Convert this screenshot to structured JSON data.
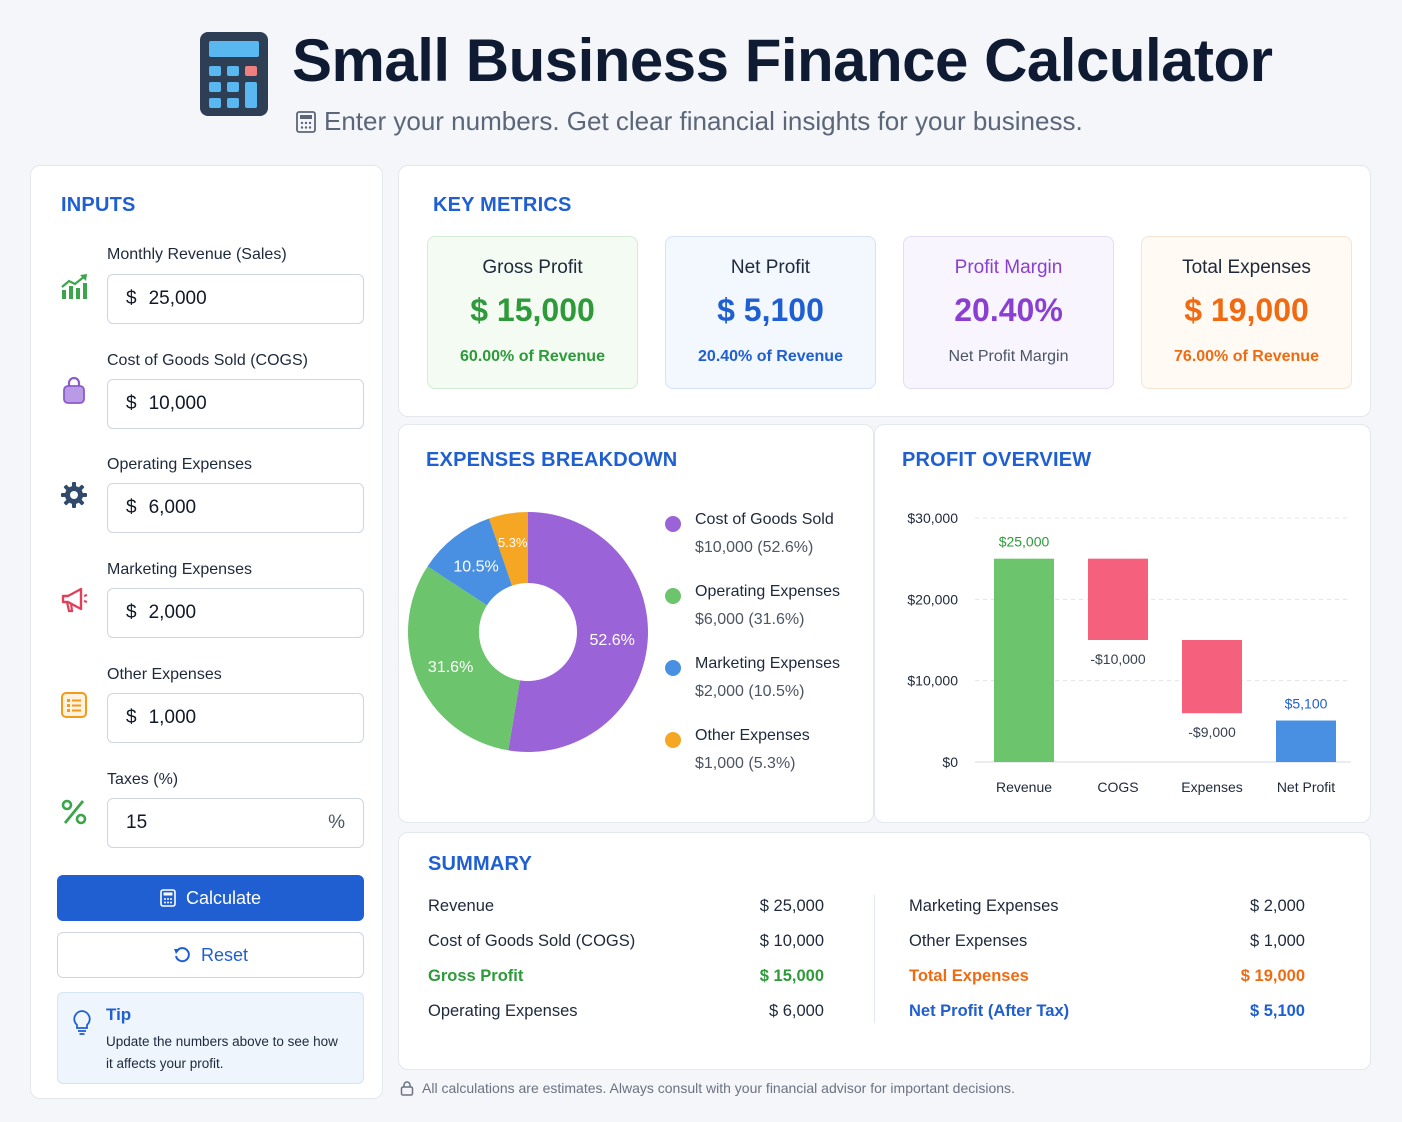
{
  "header": {
    "title": "Small Business Finance Calculator",
    "subtitle": "Enter your numbers. Get clear financial insights for your business."
  },
  "inputs": {
    "title": "INPUTS",
    "currency": "$",
    "fields": [
      {
        "label": "Monthly Revenue (Sales)",
        "value": "25,000",
        "icon": "chart-up-icon"
      },
      {
        "label": "Cost of Goods Sold (COGS)",
        "value": "10,000",
        "icon": "bag-icon"
      },
      {
        "label": "Operating Expenses",
        "value": "6,000",
        "icon": "gear-icon"
      },
      {
        "label": "Marketing Expenses",
        "value": "2,000",
        "icon": "megaphone-icon"
      },
      {
        "label": "Other Expenses",
        "value": "1,000",
        "icon": "list-icon"
      }
    ],
    "taxes": {
      "label": "Taxes (%)",
      "value": "15",
      "suffix": "%",
      "icon": "percent-icon"
    },
    "calculate_label": "Calculate",
    "reset_label": "Reset",
    "tip": {
      "title": "Tip",
      "text": "Update the numbers above to see how it affects your profit."
    }
  },
  "metrics": {
    "title": "KEY METRICS",
    "cards": [
      {
        "label": "Gross Profit",
        "value": "$ 15,000",
        "sub": "60.00% of Revenue",
        "color": "#2e9a3a",
        "bg": "#f3fbf3",
        "border": "#d4ecd5"
      },
      {
        "label": "Net Profit",
        "value": "$ 5,100",
        "sub": "20.40% of Revenue",
        "color": "#1f5fd1",
        "bg": "#f3f7fe",
        "border": "#d6e2f6"
      },
      {
        "label": "Profit Margin",
        "value": "20.40%",
        "sub": "Net Profit Margin",
        "color": "#8a3fd1",
        "bg": "#f8f5fe",
        "border": "#e4dcf5"
      },
      {
        "label": "Total Expenses",
        "value": "$ 19,000",
        "sub": "76.00% of Revenue",
        "color": "#f06a12",
        "bg": "#fffaf4",
        "border": "#f6e4d2"
      }
    ]
  },
  "expenses": {
    "title": "EXPENSES BREAKDOWN",
    "legend": [
      {
        "name": "Cost of Goods Sold",
        "value": "$10,000 (52.6%)"
      },
      {
        "name": "Operating Expenses",
        "value": "$6,000 (31.6%)"
      },
      {
        "name": "Marketing Expenses",
        "value": "$2,000 (10.5%)"
      },
      {
        "name": "Other Expenses",
        "value": "$1,000 (5.3%)"
      }
    ]
  },
  "profit": {
    "title": "PROFIT OVERVIEW"
  },
  "chart_data": [
    {
      "type": "pie",
      "donut": true,
      "categories": [
        "Cost of Goods Sold",
        "Operating Expenses",
        "Marketing Expenses",
        "Other Expenses"
      ],
      "values": [
        10000,
        6000,
        2000,
        1000
      ],
      "labels": [
        "52.6%",
        "31.6%",
        "10.5%",
        "5.3%"
      ],
      "colors": [
        "#9b63d8",
        "#6cc46c",
        "#4a90e2",
        "#f5a623"
      ]
    },
    {
      "type": "bar",
      "variant": "waterfall",
      "categories": [
        "Revenue",
        "COGS",
        "Expenses",
        "Net Profit"
      ],
      "values": [
        25000,
        -10000,
        -9000,
        5100
      ],
      "data_labels": [
        "$25,000",
        "-$10,000",
        "-$9,000",
        "$5,100"
      ],
      "colors": [
        "#6cc46c",
        "#f5607d",
        "#f5607d",
        "#4a90e2"
      ],
      "label_colors": [
        "#2e9a3a",
        "#374151",
        "#374151",
        "#1f5fd1"
      ],
      "yticks": [
        "$0",
        "$10,000",
        "$20,000",
        "$30,000"
      ],
      "ytick_values": [
        0,
        10000,
        20000,
        30000
      ],
      "ylim": [
        0,
        30000
      ],
      "grid": true
    }
  ],
  "summary": {
    "title": "SUMMARY",
    "left": [
      {
        "label": "Revenue",
        "value": "$ 25,000",
        "color": "#1e293b",
        "bold": false
      },
      {
        "label": "Cost of Goods Sold (COGS)",
        "value": "$ 10,000",
        "color": "#1e293b",
        "bold": false
      },
      {
        "label": "Gross Profit",
        "value": "$ 15,000",
        "color": "#2e9a3a",
        "bold": true
      },
      {
        "label": "Operating Expenses",
        "value": "$ 6,000",
        "color": "#1e293b",
        "bold": false
      }
    ],
    "right": [
      {
        "label": "Marketing Expenses",
        "value": "$ 2,000",
        "color": "#1e293b",
        "bold": false
      },
      {
        "label": "Other Expenses",
        "value": "$ 1,000",
        "color": "#1e293b",
        "bold": false
      },
      {
        "label": "Total Expenses",
        "value": "$ 19,000",
        "color": "#f06a12",
        "bold": true
      },
      {
        "label": "Net Profit (After Tax)",
        "value": "$ 5,100",
        "color": "#1f5fd1",
        "bold": true
      }
    ]
  },
  "footer": {
    "text": "All calculations are estimates. Always consult with your financial advisor for important decisions."
  }
}
